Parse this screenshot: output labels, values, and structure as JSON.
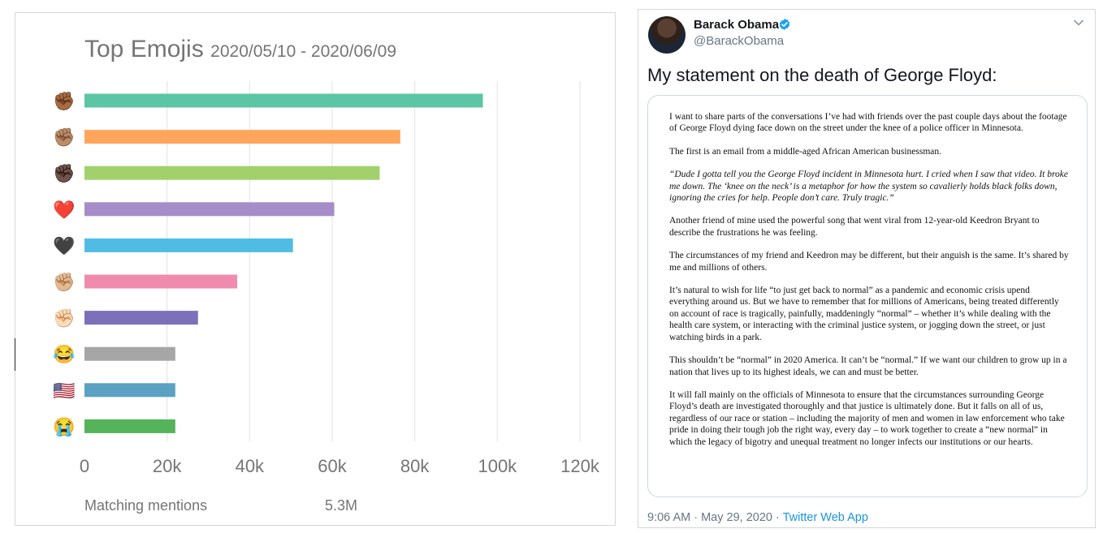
{
  "chart_data": {
    "type": "bar",
    "orientation": "horizontal",
    "title": "Top Emojis",
    "subtitle": "2020/05/10 - 2020/06/09",
    "categories": [
      {
        "emoji": "✊🏾",
        "name": "raised-fist-medium-dark-skin-tone"
      },
      {
        "emoji": "✊🏽",
        "name": "raised-fist-medium-skin-tone"
      },
      {
        "emoji": "✊🏿",
        "name": "raised-fist-dark-skin-tone"
      },
      {
        "emoji": "❤️",
        "name": "red-heart"
      },
      {
        "emoji": "🖤",
        "name": "black-heart"
      },
      {
        "emoji": "✊🏼",
        "name": "raised-fist-medium-light-skin-tone"
      },
      {
        "emoji": "✊🏻",
        "name": "raised-fist-light-skin-tone"
      },
      {
        "emoji": "😂",
        "name": "face-with-tears-of-joy"
      },
      {
        "emoji": "🇺🇸",
        "name": "flag-united-states"
      },
      {
        "emoji": "😭",
        "name": "loudly-crying-face"
      }
    ],
    "values": [
      96500,
      76500,
      71500,
      60500,
      50500,
      37000,
      27500,
      22000,
      22000,
      22000
    ],
    "colors": [
      "#5cc5a4",
      "#ffa65c",
      "#a2d16c",
      "#a58dc9",
      "#4fbde3",
      "#f08bae",
      "#7c70bb",
      "#a6a6a6",
      "#5aa1c2",
      "#55b359"
    ],
    "xlim": [
      0,
      120000
    ],
    "xticks": [
      0,
      20000,
      40000,
      60000,
      80000,
      100000,
      120000
    ],
    "xtick_labels": [
      "0",
      "20k",
      "40k",
      "60k",
      "80k",
      "100k",
      "120k"
    ],
    "grid": "vertical",
    "xlabel": "",
    "ylabel": ""
  },
  "footer": {
    "label": "Matching mentions",
    "value": "5.3M"
  },
  "tweet": {
    "author_name": "Barack Obama",
    "handle": "@BarackObama",
    "verified_icon": "verified-badge-icon",
    "menu_icon": "chevron-down-icon",
    "text": "My statement on the death of George Floyd:",
    "timestamp": "9:06 AM · May 29, 2020",
    "separator": " · ",
    "source": "Twitter Web App",
    "accent_color": "#1da1f2",
    "statement": [
      {
        "text": "I want to share parts of the conversations I’ve had with friends over the past couple days about the footage of George Floyd dying face down on the street under the knee of a police officer in Minnesota.",
        "italic": false
      },
      {
        "text": "The first is an email from a middle-aged African American businessman.",
        "italic": false
      },
      {
        "text": "“Dude I gotta tell you the George Floyd incident in Minnesota hurt. I cried when I saw that video. It broke me down. The ‘knee on the neck’ is a metaphor for how the system so cavalierly holds black folks down, ignoring the cries for help. People don’t care. Truly tragic.”",
        "italic": true
      },
      {
        "text": "Another friend of mine used the powerful song that went viral from 12-year-old Keedron Bryant to describe the frustrations he was feeling.",
        "italic": false
      },
      {
        "text": "The circumstances of my friend and Keedron may be different, but their anguish is the same. It’s shared by me and millions of others.",
        "italic": false
      },
      {
        "text": "It’s natural to wish for life “to just get back to normal” as a pandemic and economic crisis upend everything around us. But we have to remember that for millions of Americans, being treated differently on account of race is tragically, painfully, maddeningly “normal” – whether it’s while dealing with the health care system, or interacting with the criminal justice system, or jogging down the street, or just watching birds in a park.",
        "italic": false
      },
      {
        "text": "This shouldn’t be “normal” in 2020 America. It can’t be “normal.” If we want our children to grow up in a nation that lives up to its highest ideals, we can and must be better.",
        "italic": false
      },
      {
        "text": "It will fall mainly on the officials of Minnesota to ensure that the circumstances surrounding George Floyd’s death are investigated thoroughly and that justice is ultimately done. But it falls on all of us, regardless of our race or station – including the majority of men and women in law enforcement who take pride in doing their tough job the right way, every day – to work together to create a “new normal” in which the legacy of bigotry and unequal treatment no longer infects our institutions or our hearts.",
        "italic": false
      }
    ]
  }
}
